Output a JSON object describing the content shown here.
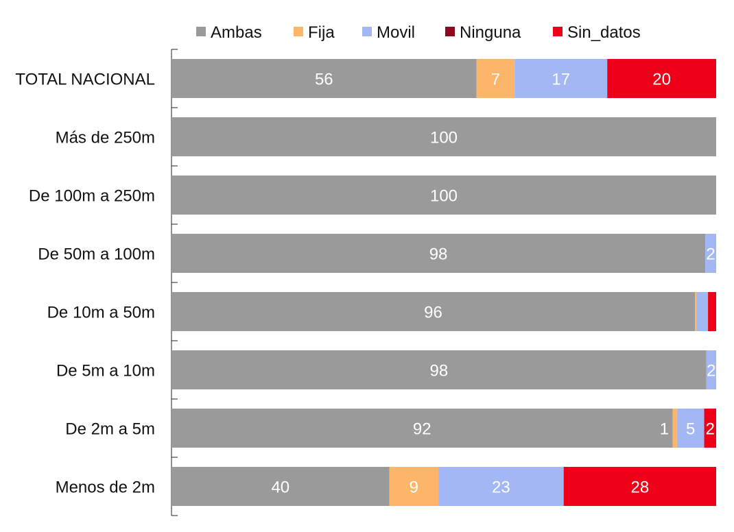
{
  "chart_data": {
    "type": "bar",
    "orientation": "horizontal",
    "stacked": true,
    "title": "",
    "xlabel": "",
    "ylabel": "",
    "xlim": [
      0,
      100
    ],
    "grid": false,
    "legend_position": "top",
    "categories": [
      "TOTAL NACIONAL",
      "Más de 250m",
      "De 100m a 250m",
      "De 50m a 100m",
      "De 10m a 50m",
      "De 5m a 10m",
      "De 2m a 5m",
      "Menos de 2m"
    ],
    "series": [
      {
        "name": "Ambas",
        "color": "#9a9a9a",
        "values": [
          56,
          100,
          100,
          98,
          96.1,
          98.2,
          92,
          40
        ],
        "labels": [
          "56",
          "100",
          "100",
          "98",
          "96",
          "98",
          "92",
          "40"
        ]
      },
      {
        "name": "Fija",
        "color": "#fdb56a",
        "values": [
          7,
          0,
          0,
          0,
          0.3,
          0,
          0.8,
          9
        ],
        "labels": [
          "7",
          "",
          "",
          "",
          "",
          "",
          "1",
          "9"
        ]
      },
      {
        "name": "Movil",
        "color": "#a2b7f4",
        "values": [
          17,
          0,
          0,
          2,
          2.1,
          1.8,
          5,
          23
        ],
        "labels": [
          "17",
          "",
          "",
          "2",
          "",
          "2",
          "5",
          "23"
        ]
      },
      {
        "name": "Ninguna",
        "color": "#8b0a1e",
        "values": [
          0,
          0,
          0,
          0,
          0,
          0,
          0,
          0
        ],
        "labels": [
          "",
          "",
          "",
          "",
          "",
          "",
          "",
          ""
        ]
      },
      {
        "name": "Sin_datos",
        "color": "#ef0019",
        "values": [
          20,
          0,
          0,
          0,
          1.5,
          0,
          2.2,
          28
        ],
        "labels": [
          "20",
          "",
          "",
          "",
          "",
          "",
          "2",
          "28"
        ]
      }
    ]
  }
}
